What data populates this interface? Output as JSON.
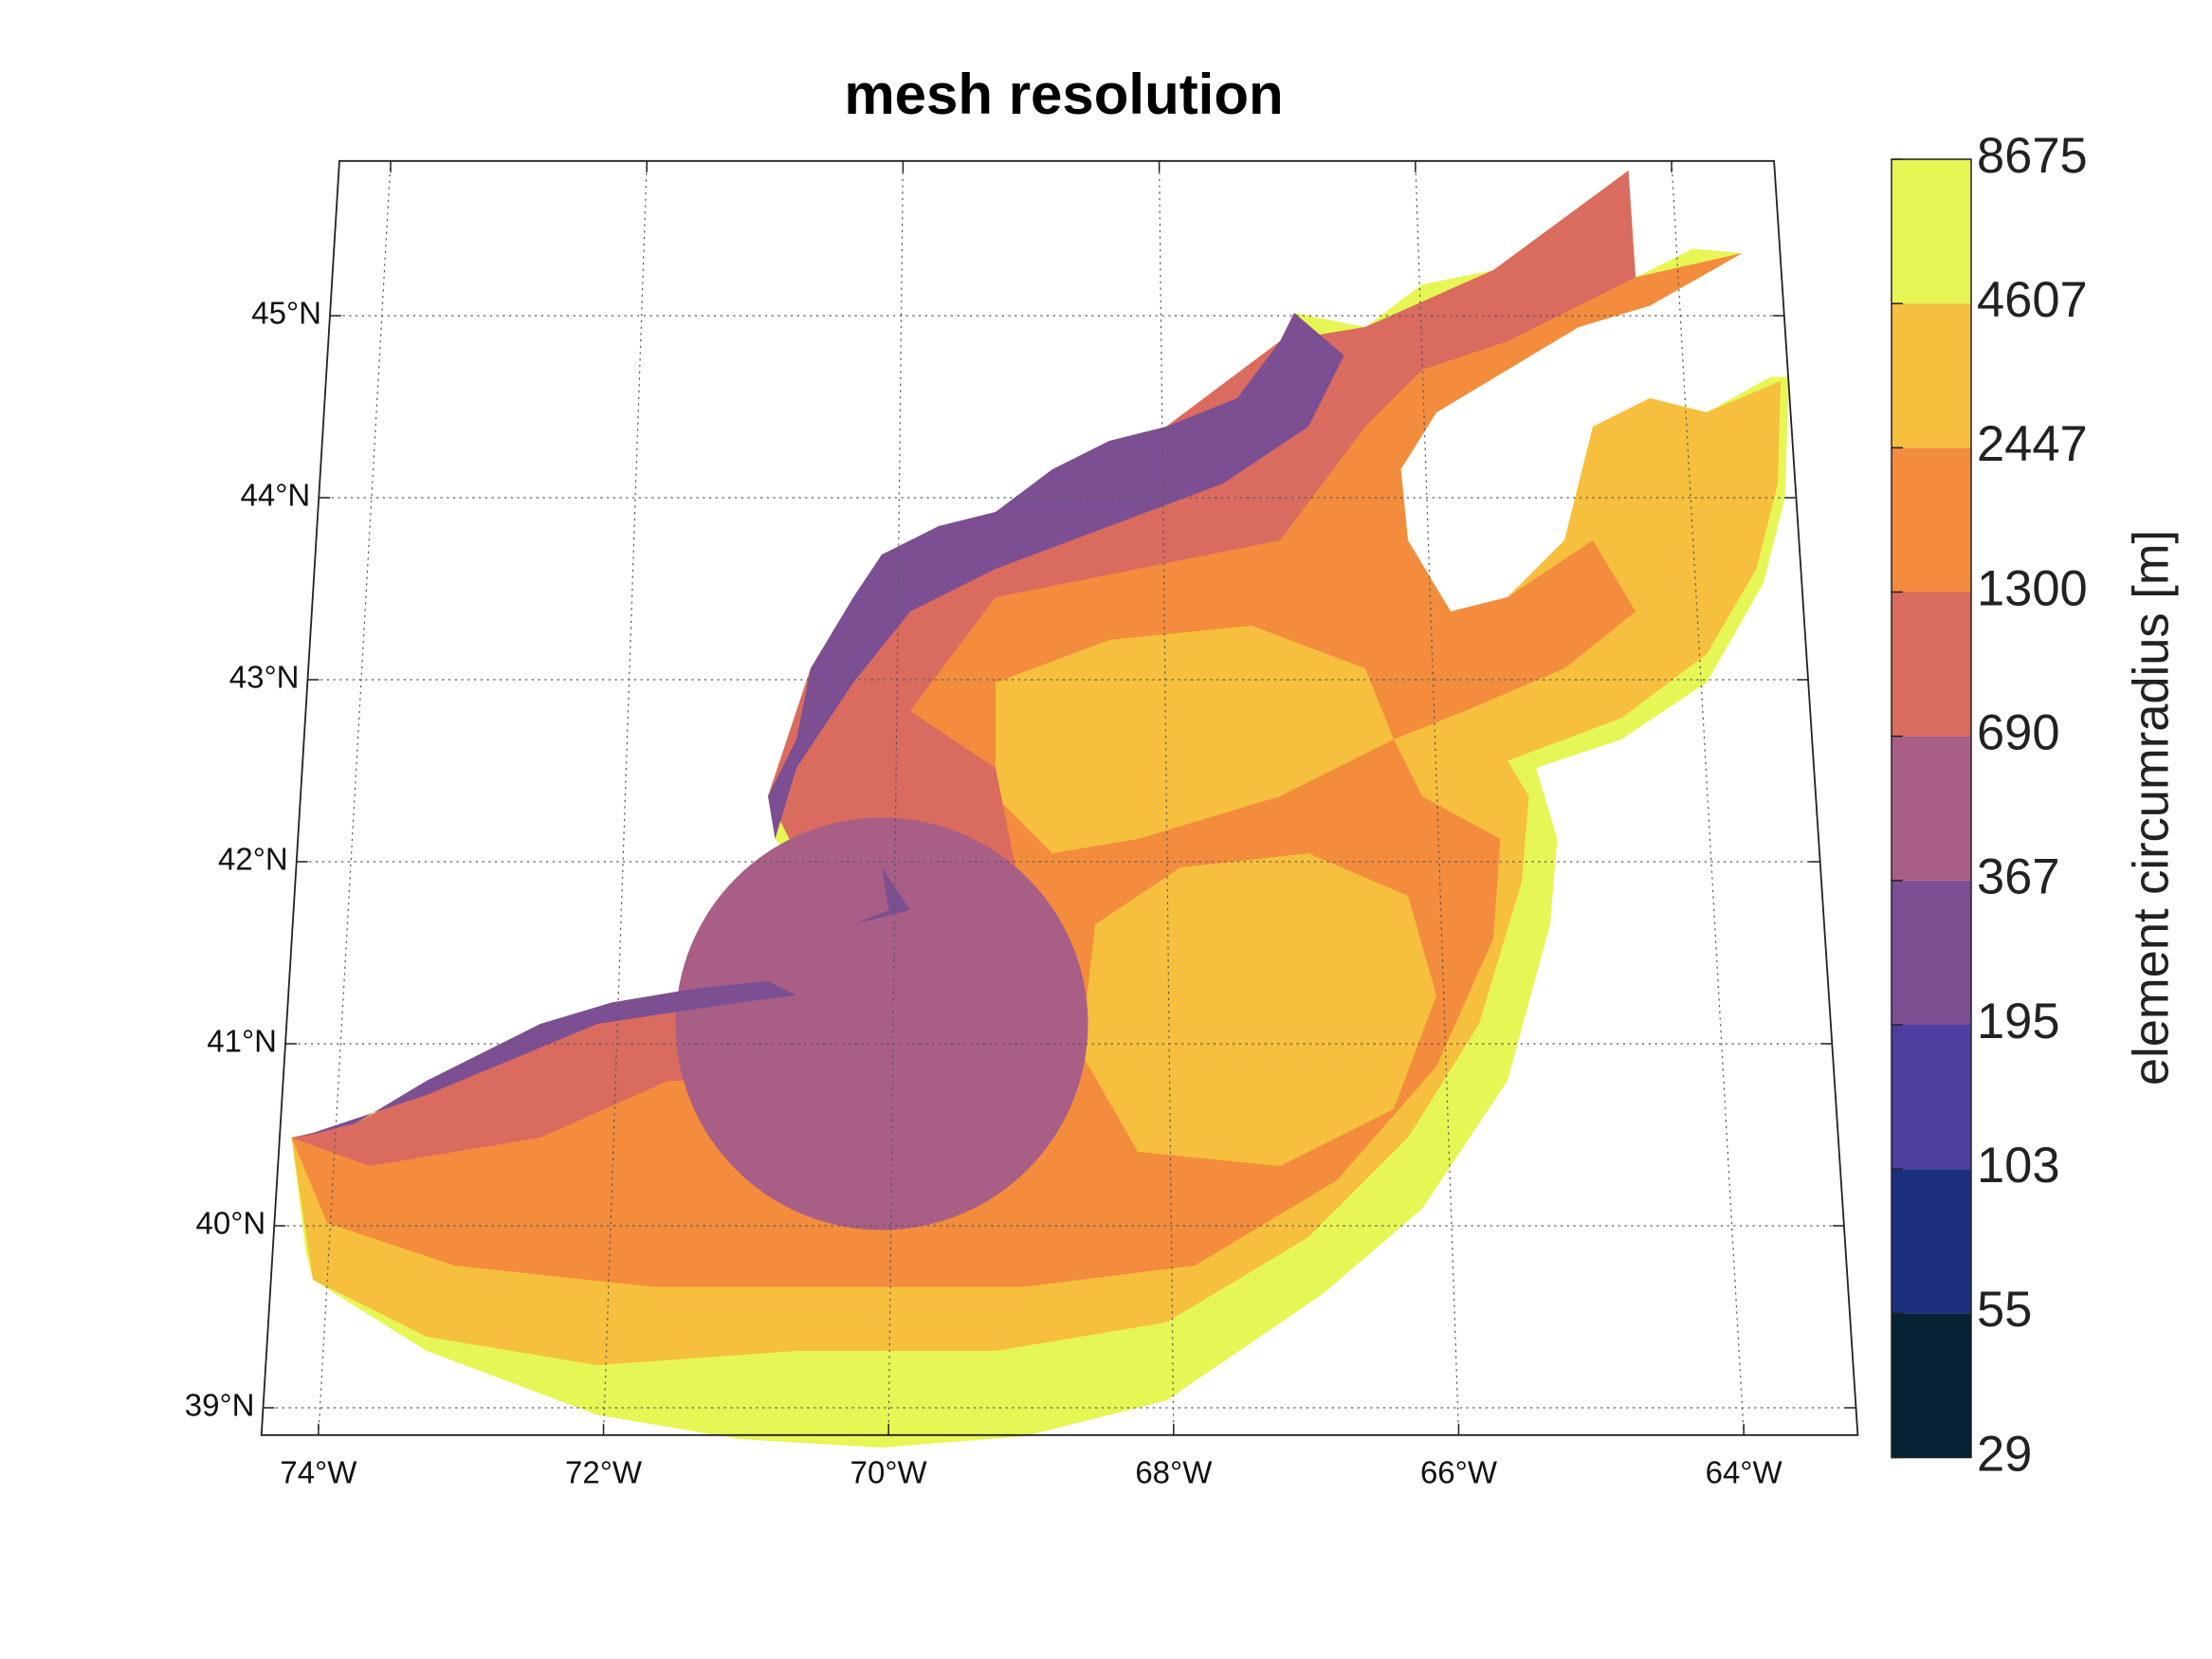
{
  "chart_data": {
    "type": "map",
    "title": "mesh resolution",
    "xlim": [
      -74.4,
      -63.2
    ],
    "ylim": [
      38.85,
      45.85
    ],
    "grid": true,
    "xticks": [
      {
        "value": -74,
        "label": "74°W"
      },
      {
        "value": -72,
        "label": "72°W"
      },
      {
        "value": -70,
        "label": "70°W"
      },
      {
        "value": -68,
        "label": "68°W"
      },
      {
        "value": -66,
        "label": "66°W"
      },
      {
        "value": -64,
        "label": "64°W"
      }
    ],
    "yticks": [
      {
        "value": 39,
        "label": "39°N"
      },
      {
        "value": 40,
        "label": "40°N"
      },
      {
        "value": 41,
        "label": "41°N"
      },
      {
        "value": 42,
        "label": "42°N"
      },
      {
        "value": 43,
        "label": "43°N"
      },
      {
        "value": 44,
        "label": "44°N"
      },
      {
        "value": 45,
        "label": "45°N"
      }
    ],
    "colorbar": {
      "label": "element circumradius [m]",
      "ticks": [
        29,
        55,
        103,
        195,
        367,
        690,
        1300,
        2447,
        4607,
        8675
      ],
      "colors": [
        "#062333",
        "#1b2f7c",
        "#4f3d9f",
        "#7c4f93",
        "#a95e85",
        "#da6b5f",
        "#f38c3d",
        "#f6bf3d",
        "#e6f655"
      ]
    }
  }
}
